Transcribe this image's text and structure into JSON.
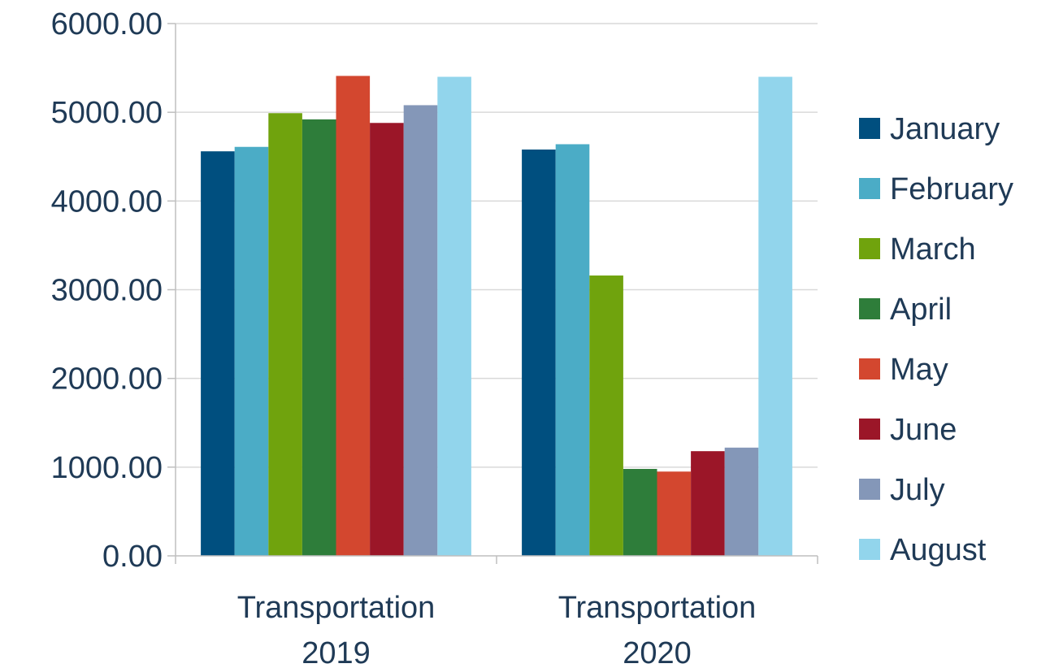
{
  "chart_data": {
    "type": "bar",
    "categories": [
      [
        "Transportation",
        "2019"
      ],
      [
        "Transportation",
        "2020"
      ]
    ],
    "series": [
      {
        "name": "January",
        "color": "#004f7f",
        "values": [
          4560,
          4580
        ]
      },
      {
        "name": "February",
        "color": "#4bacc6",
        "values": [
          4610,
          4640
        ]
      },
      {
        "name": "March",
        "color": "#70a30d",
        "values": [
          4990,
          3160
        ]
      },
      {
        "name": "April",
        "color": "#2e7d3a",
        "values": [
          4920,
          980
        ]
      },
      {
        "name": "May",
        "color": "#d3472f",
        "values": [
          5410,
          950
        ]
      },
      {
        "name": "June",
        "color": "#9b1628",
        "values": [
          4880,
          1180
        ]
      },
      {
        "name": "July",
        "color": "#8497b8",
        "values": [
          5080,
          1220
        ]
      },
      {
        "name": "August",
        "color": "#92d5ec",
        "values": [
          5400,
          5400
        ]
      }
    ],
    "y_ticks": [
      "0.00",
      "1000.00",
      "2000.00",
      "3000.00",
      "4000.00",
      "5000.00",
      "6000.00"
    ],
    "ylim": [
      0,
      6000
    ],
    "grid": true,
    "legend_position": "right"
  }
}
